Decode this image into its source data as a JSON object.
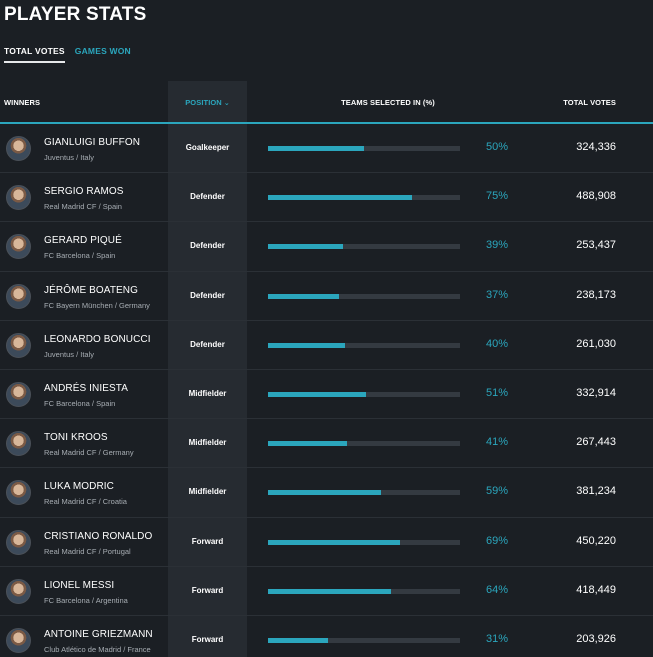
{
  "title": "PLAYER STATS",
  "tabs": [
    {
      "label": "TOTAL VOTES",
      "active": true
    },
    {
      "label": "GAMES WON",
      "active": false
    }
  ],
  "columns": {
    "winners": "WINNERS",
    "position": "POSITION",
    "teams_selected": "TEAMS SELECTED IN (%)",
    "total_votes": "TOTAL VOTES"
  },
  "colors": {
    "accent": "#2ba6bd",
    "background": "#1b1f24",
    "position_column": "#262b31",
    "bar_track": "#343a41"
  },
  "players": [
    {
      "name": "GIANLUIGI BUFFON",
      "team": "Juventus / Italy",
      "position": "Goalkeeper",
      "pct_label": "50%",
      "pct": 50,
      "votes": "324,336"
    },
    {
      "name": "SERGIO RAMOS",
      "team": "Real Madrid CF / Spain",
      "position": "Defender",
      "pct_label": "75%",
      "pct": 75,
      "votes": "488,908"
    },
    {
      "name": "GERARD PIQUÉ",
      "team": "FC Barcelona / Spain",
      "position": "Defender",
      "pct_label": "39%",
      "pct": 39,
      "votes": "253,437"
    },
    {
      "name": "JÉRÔME BOATENG",
      "team": "FC Bayern München / Germany",
      "position": "Defender",
      "pct_label": "37%",
      "pct": 37,
      "votes": "238,173"
    },
    {
      "name": "LEONARDO BONUCCI",
      "team": "Juventus / Italy",
      "position": "Defender",
      "pct_label": "40%",
      "pct": 40,
      "votes": "261,030"
    },
    {
      "name": "ANDRÉS INIESTA",
      "team": "FC Barcelona / Spain",
      "position": "Midfielder",
      "pct_label": "51%",
      "pct": 51,
      "votes": "332,914"
    },
    {
      "name": "TONI KROOS",
      "team": "Real Madrid CF / Germany",
      "position": "Midfielder",
      "pct_label": "41%",
      "pct": 41,
      "votes": "267,443"
    },
    {
      "name": "LUKA MODRIC",
      "team": "Real Madrid CF / Croatia",
      "position": "Midfielder",
      "pct_label": "59%",
      "pct": 59,
      "votes": "381,234"
    },
    {
      "name": "CRISTIANO RONALDO",
      "team": "Real Madrid CF / Portugal",
      "position": "Forward",
      "pct_label": "69%",
      "pct": 69,
      "votes": "450,220"
    },
    {
      "name": "LIONEL MESSI",
      "team": "FC Barcelona / Argentina",
      "position": "Forward",
      "pct_label": "64%",
      "pct": 64,
      "votes": "418,449"
    },
    {
      "name": "ANTOINE GRIEZMANN",
      "team": "Club Atlético de Madrid / France",
      "position": "Forward",
      "pct_label": "31%",
      "pct": 31,
      "votes": "203,926"
    }
  ]
}
